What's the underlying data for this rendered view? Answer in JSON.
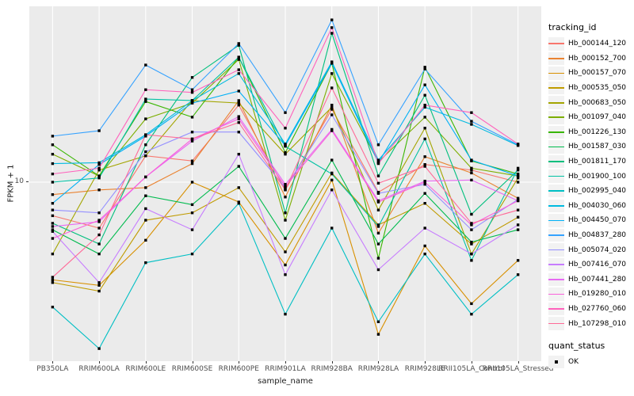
{
  "colors": {
    "panel_bg": "#EBEBEB",
    "grid": "#FFFFFF",
    "marker": "#000000",
    "tick_text": "#4D4D4D",
    "legend_key_bg": "#F2F2F2"
  },
  "chart_data": {
    "type": "line",
    "title": "",
    "xlabel": "sample_name",
    "ylabel": "FPKM + 1",
    "yscale": "log10",
    "yticks": [
      10
    ],
    "ytick_labels": [
      "10"
    ],
    "grid": "on",
    "legend_title": "tracking_id",
    "legend_position": "right",
    "point_legend": {
      "title": "quant_status",
      "items": [
        "OK"
      ]
    },
    "x_categories": [
      "PB350LA",
      "RRIM600LA",
      "RRIM600LE",
      "RRIM600SE",
      "RRIM600PE",
      "RRIM901LA",
      "RRIM928BA",
      "RRIM928LA",
      "RRIM928LE",
      "RRII105LA_Control",
      "RRII105LA_Stressed"
    ],
    "series": [
      {
        "name": "Hb_000144_120",
        "color": "#F8766D",
        "values": [
          7.3,
          6.5,
          12.8,
          12.2,
          20.6,
          9.3,
          19.8,
          9.1,
          11.8,
          11.2,
          10.0
        ]
      },
      {
        "name": "Hb_000152_700",
        "color": "#EA8331",
        "values": [
          8.9,
          9.3,
          9.5,
          11.9,
          21.5,
          8.7,
          20.6,
          6.2,
          12.7,
          10.9,
          8.6
        ]
      },
      {
        "name": "Hb_000157_070",
        "color": "#D89000",
        "values": [
          4.0,
          3.8,
          5.8,
          10.0,
          8.3,
          4.6,
          10.2,
          2.4,
          5.5,
          3.2,
          4.8
        ]
      },
      {
        "name": "Hb_000535_050",
        "color": "#C09B00",
        "values": [
          3.9,
          3.6,
          7.0,
          7.5,
          9.5,
          5.2,
          10.9,
          6.7,
          8.2,
          5.6,
          7.2
        ]
      },
      {
        "name": "Hb_000683_050",
        "color": "#A3A500",
        "values": [
          5.1,
          11.2,
          12.8,
          21.5,
          21.0,
          13.0,
          20.2,
          7.7,
          16.6,
          5.1,
          10.4
        ]
      },
      {
        "name": "Hb_001097_040",
        "color": "#7CAE00",
        "values": [
          13.0,
          10.6,
          18.1,
          21.0,
          31.6,
          7.0,
          27.7,
          12.1,
          18.4,
          11.4,
          10.6
        ]
      },
      {
        "name": "Hb_001226_130",
        "color": "#39B600",
        "values": [
          14.2,
          10.6,
          21.3,
          18.4,
          32.3,
          13.2,
          30.5,
          4.9,
          29.4,
          12.2,
          10.8
        ]
      },
      {
        "name": "Hb_001587_030",
        "color": "#00BB4E",
        "values": [
          6.4,
          5.1,
          8.8,
          8.1,
          11.6,
          5.9,
          12.3,
          5.6,
          9.0,
          5.7,
          6.4
        ]
      },
      {
        "name": "Hb_001811_170",
        "color": "#00BF7D",
        "values": [
          6.8,
          5.6,
          14.2,
          26.7,
          36.1,
          7.5,
          40.4,
          10.6,
          22.6,
          7.4,
          11.2
        ]
      },
      {
        "name": "Hb_001900_100",
        "color": "#00C1A3",
        "values": [
          10.0,
          10.4,
          21.8,
          21.5,
          32.3,
          14.0,
          10.8,
          6.6,
          15.0,
          4.8,
          11.4
        ]
      },
      {
        "name": "Hb_002995_040",
        "color": "#00BFC4",
        "values": [
          3.1,
          2.1,
          4.7,
          5.1,
          8.2,
          2.9,
          6.5,
          2.7,
          5.1,
          2.9,
          4.2
        ]
      },
      {
        "name": "Hb_004030_060",
        "color": "#00BAE0",
        "values": [
          11.9,
          12.0,
          15.6,
          21.5,
          27.7,
          14.3,
          30.9,
          12.3,
          20.2,
          17.2,
          14.1
        ]
      },
      {
        "name": "Hb_004450_070",
        "color": "#00B0F6",
        "values": [
          8.2,
          11.8,
          15.4,
          21.0,
          23.5,
          14.1,
          30.5,
          12.0,
          24.9,
          12.3,
          10.6
        ]
      },
      {
        "name": "Hb_004837_280",
        "color": "#35A2FF",
        "values": [
          15.4,
          16.2,
          30.0,
          23.8,
          36.7,
          19.2,
          45.8,
          14.2,
          28.9,
          17.7,
          14.2
        ]
      },
      {
        "name": "Hb_005074_020",
        "color": "#9590FF",
        "values": [
          7.7,
          7.5,
          13.3,
          16.0,
          16.0,
          9.5,
          18.8,
          9.0,
          9.8,
          6.4,
          8.5
        ]
      },
      {
        "name": "Hb_007416_070",
        "color": "#C77CFF",
        "values": [
          6.3,
          3.9,
          7.8,
          6.4,
          13.0,
          4.2,
          9.3,
          4.4,
          6.5,
          5.1,
          6.7
        ]
      },
      {
        "name": "Hb_007441_280",
        "color": "#E76BF3",
        "values": [
          6.6,
          6.9,
          10.5,
          14.7,
          18.5,
          9.8,
          16.4,
          8.4,
          10.1,
          10.2,
          8.4
        ]
      },
      {
        "name": "Hb_019280_010",
        "color": "#FA62DB",
        "values": [
          5.9,
          7.0,
          10.5,
          15.0,
          18.1,
          9.6,
          16.2,
          8.3,
          10.0,
          6.7,
          8.4
        ]
      },
      {
        "name": "Hb_027760_060",
        "color": "#FF62BC",
        "values": [
          10.8,
          11.4,
          23.8,
          23.2,
          28.7,
          16.6,
          42.6,
          11.9,
          20.6,
          19.2,
          14.3
        ]
      },
      {
        "name": "Hb_107298_010",
        "color": "#FF6A98",
        "values": [
          4.1,
          6.1,
          15.6,
          15.0,
          17.5,
          9.3,
          24.2,
          9.9,
          11.6,
          6.8,
          7.7
        ]
      }
    ]
  }
}
